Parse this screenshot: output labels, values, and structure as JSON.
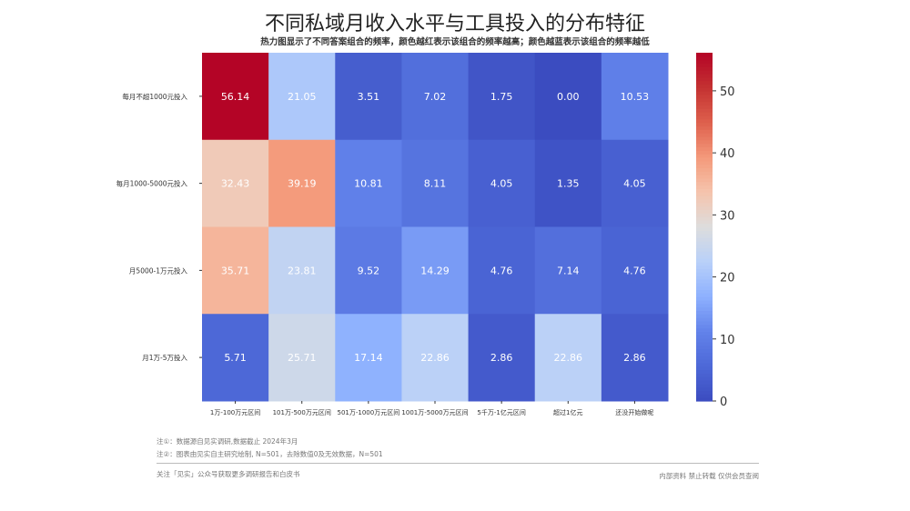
{
  "chart_data": {
    "type": "heatmap",
    "title": "不同私域月收入水平与工具投入的分布特征",
    "subtitle": "热力图显示了不同答案组合的频率，颜色越红表示该组合的频率越高；颜色越蓝表示该组合的频率越低",
    "rows": [
      "每月不超1000元投入",
      "每月1000-5000元投入",
      "月5000-1万元投入",
      "月1万-5万投入"
    ],
    "columns": [
      "1万-100万元区间",
      "101万-500万元区间",
      "501万-1000万元区间",
      "1001万-5000万元区间",
      "5千万-1亿元区间",
      "超过1亿元",
      "还没开始做呢"
    ],
    "values": [
      [
        56.14,
        21.05,
        3.51,
        7.02,
        1.75,
        0.0,
        10.53
      ],
      [
        32.43,
        39.19,
        10.81,
        8.11,
        4.05,
        1.35,
        4.05
      ],
      [
        35.71,
        23.81,
        9.52,
        14.29,
        4.76,
        7.14,
        4.76
      ],
      [
        5.71,
        25.71,
        17.14,
        22.86,
        2.86,
        22.86,
        2.86
      ]
    ],
    "colormap": "coolwarm",
    "colorbar": {
      "range": [
        0,
        56.14
      ],
      "ticks": [
        0,
        10,
        20,
        30,
        40,
        50
      ]
    }
  },
  "notes": [
    "注①：数据源自见实调研,数据截止 2024年3月",
    "注②：图表由见实自主研究绘制, N=501，去除数值0及无效数据，N=501"
  ],
  "footer": {
    "left": "关注「见实」公众号获取更多调研报告和白皮书",
    "right": "内部资料 禁止转载 仅供会员查阅"
  }
}
